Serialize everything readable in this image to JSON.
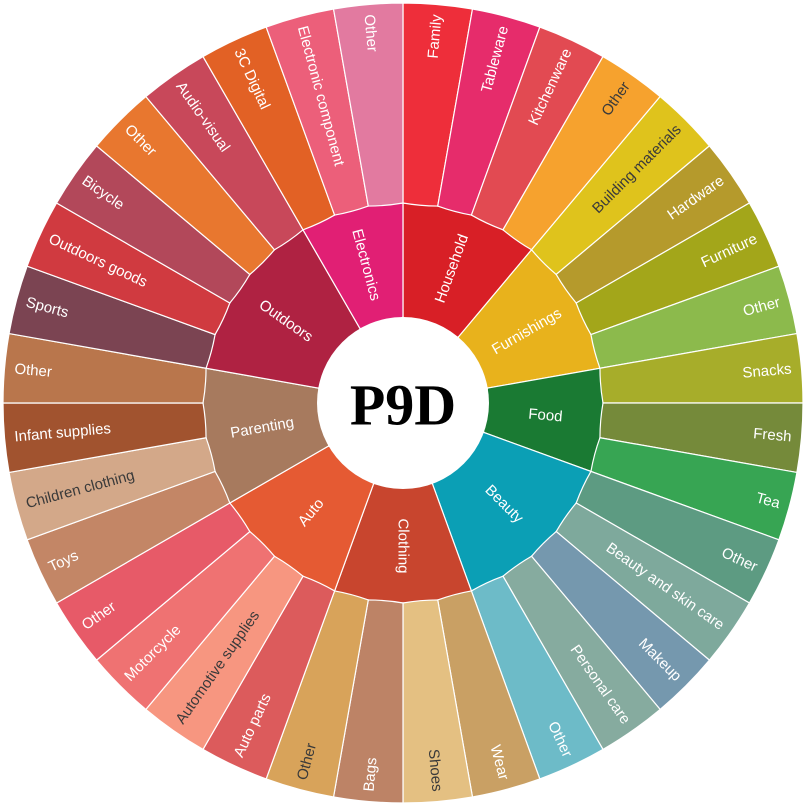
{
  "chart_data": {
    "type": "sunburst",
    "title": "P9D",
    "categories": [
      {
        "name": "Household",
        "color": "#d81f26",
        "children": [
          {
            "name": "Family",
            "color": "#ee2e3a"
          },
          {
            "name": "Tableware",
            "color": "#e62c6b"
          },
          {
            "name": "Kitchenware",
            "color": "#e24a52"
          },
          {
            "name": "Other",
            "color": "#f6a22e"
          }
        ]
      },
      {
        "name": "Furnishings",
        "color": "#e8b21c",
        "children": [
          {
            "name": "Building materials",
            "color": "#dfc31c"
          },
          {
            "name": "Hardware",
            "color": "#b59a2c"
          },
          {
            "name": "Furniture",
            "color": "#a3a61a"
          },
          {
            "name": "Other",
            "color": "#8cba4c"
          }
        ]
      },
      {
        "name": "Food",
        "color": "#1a7a33",
        "children": [
          {
            "name": "Snacks",
            "color": "#a7ad2a"
          },
          {
            "name": "Fresh",
            "color": "#758a3a"
          },
          {
            "name": "Tea",
            "color": "#37a553"
          }
        ]
      },
      {
        "name": "Beauty",
        "color": "#0b9fb5",
        "children": [
          {
            "name": "Other",
            "color": "#5d9b82"
          },
          {
            "name": "Beauty and skin care",
            "color": "#7ea99c"
          },
          {
            "name": "Makeup",
            "color": "#7598ae"
          },
          {
            "name": "Personal care",
            "color": "#86ab9f"
          },
          {
            "name": "Other",
            "color": "#6dbbc8"
          }
        ]
      },
      {
        "name": "Clothing",
        "color": "#c8452e",
        "children": [
          {
            "name": "Wear",
            "color": "#c9a064"
          },
          {
            "name": "Shoes",
            "color": "#e4c082"
          },
          {
            "name": "Bags",
            "color": "#bd8366"
          },
          {
            "name": "Other",
            "color": "#d8a35a"
          }
        ]
      },
      {
        "name": "Auto",
        "color": "#e55a33",
        "children": [
          {
            "name": "Auto parts",
            "color": "#dc5b5c"
          },
          {
            "name": "Automotive supplies",
            "color": "#f79680"
          },
          {
            "name": "Motorcycle",
            "color": "#ef7272"
          },
          {
            "name": "Other",
            "color": "#e75a68"
          }
        ]
      },
      {
        "name": "Parenting",
        "color": "#a77a5e",
        "children": [
          {
            "name": "Toys",
            "color": "#c38666"
          },
          {
            "name": "Children clothing",
            "color": "#d3a889"
          },
          {
            "name": "Infant supplies",
            "color": "#a1532f"
          },
          {
            "name": "Other",
            "color": "#b9764c"
          }
        ]
      },
      {
        "name": "Outdoors",
        "color": "#af2242",
        "children": [
          {
            "name": "Sports",
            "color": "#7b4452"
          },
          {
            "name": "Outdoors goods",
            "color": "#d03a40"
          },
          {
            "name": "Bicycle",
            "color": "#b2485a"
          },
          {
            "name": "Other",
            "color": "#e8772f"
          },
          {
            "name": "Audio-visual",
            "color": "#c8485a"
          }
        ]
      },
      {
        "name": "Electronics",
        "color": "#e11f74",
        "children": [
          {
            "name": "3C Digital",
            "color": "#e26125"
          },
          {
            "name": "Electronic component",
            "color": "#ec5f7a"
          },
          {
            "name": "Other",
            "color": "#e27aa0"
          }
        ]
      }
    ]
  }
}
